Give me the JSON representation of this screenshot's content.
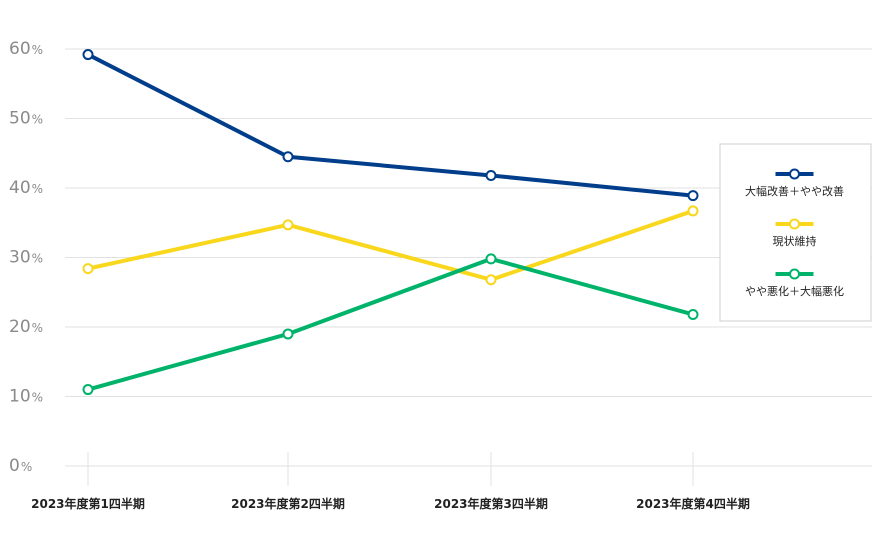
{
  "chart_data": {
    "type": "line",
    "categories": [
      "2023年度第1四半期",
      "2023年度第2四半期",
      "2023年度第3四半期",
      "2023年度第4四半期"
    ],
    "series": [
      {
        "name": "大幅改善＋やや改善",
        "color": "#003d8a",
        "values": [
          59.2,
          44.5,
          41.8,
          38.9
        ]
      },
      {
        "name": "現状維持",
        "color": "#f9d71c",
        "values": [
          28.4,
          34.7,
          26.8,
          36.7
        ]
      },
      {
        "name": "やや悪化＋大幅悪化",
        "color": "#00b36b",
        "values": [
          11.0,
          19.0,
          29.8,
          21.8
        ]
      }
    ],
    "ylim": [
      0,
      60
    ],
    "yticks": [
      0,
      10,
      20,
      30,
      40,
      50,
      60
    ],
    "ytick_unit": "%",
    "grid": true,
    "legend_position": "right"
  }
}
